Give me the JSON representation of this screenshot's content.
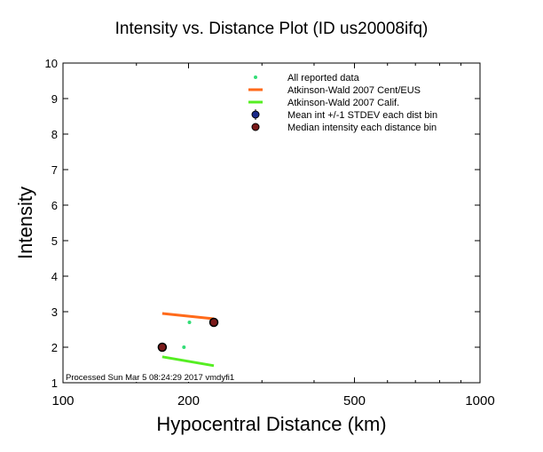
{
  "chart_data": {
    "type": "scatter",
    "title": "Intensity vs. Distance Plot (ID us20008ifq)",
    "xlabel": "Hypocentral Distance (km)",
    "ylabel": "Intensity",
    "xscale": "log",
    "xlim": [
      100,
      1000
    ],
    "ylim": [
      1,
      10
    ],
    "xticks": [
      "100",
      "200",
      "500",
      "1000"
    ],
    "yticks": [
      "1",
      "2",
      "3",
      "4",
      "5",
      "6",
      "7",
      "8",
      "9",
      "10"
    ],
    "footer": "Processed Sun Mar  5 08:24:29 2017 vmdyfi1",
    "legend_position": "top-right",
    "series": [
      {
        "name": "All reported data",
        "kind": "points",
        "color": "#33dd77",
        "x": [
          201,
          195
        ],
        "y": [
          2.7,
          2.0
        ]
      },
      {
        "name": "Atkinson-Wald 2007 Cent/EUS",
        "kind": "line",
        "color": "#ff6a1a",
        "x": [
          173,
          230
        ],
        "y": [
          2.95,
          2.8
        ]
      },
      {
        "name": "Atkinson-Wald 2007 Calif.",
        "kind": "line",
        "color": "#55ee22",
        "x": [
          173,
          230
        ],
        "y": [
          1.73,
          1.48
        ]
      },
      {
        "name": "Mean int +/-1 STDEV each dist bin",
        "kind": "errorbar",
        "color": "#1a2a8a",
        "x": [],
        "y": []
      },
      {
        "name": "Median intensity each distance bin",
        "kind": "points",
        "color": "#7a1a1a",
        "x": [
          173,
          230
        ],
        "y": [
          2.0,
          2.7
        ]
      }
    ]
  }
}
